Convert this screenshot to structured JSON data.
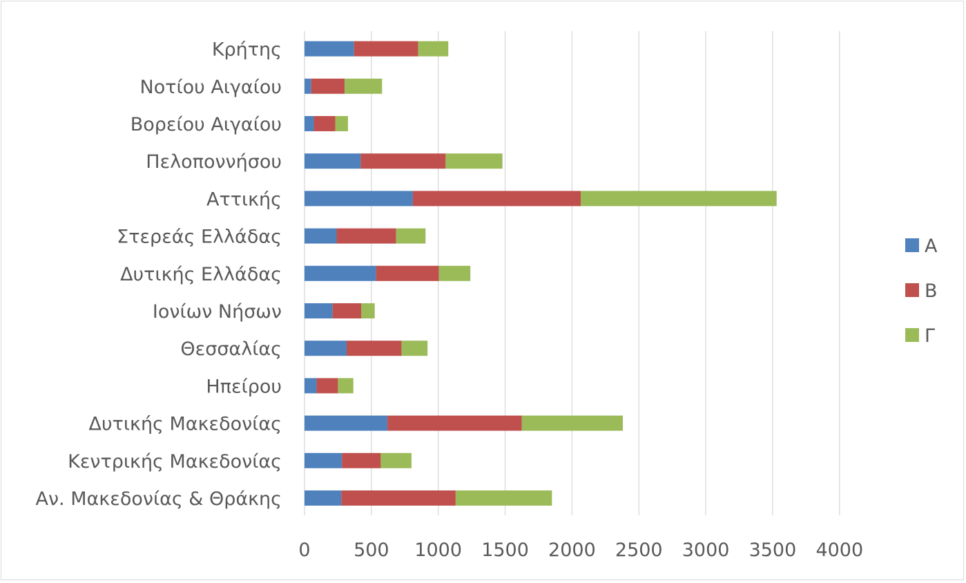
{
  "chart_data": {
    "type": "bar",
    "orientation": "horizontal",
    "stacked": true,
    "categories": [
      "Αν. Μακεδονίας & Θράκης",
      "Κεντρικής Μακεδονίας",
      "Δυτικής Μακεδονίας",
      "Ηπείρου",
      "Θεσσαλίας",
      "Ιονίων Νήσων",
      "Δυτικής Ελλάδας",
      "Στερεάς Ελλάδας",
      "Αττικής",
      "Πελοποννήσου",
      "Βορείου Αιγαίου",
      "Νοτίου Αιγαίου",
      "Κρήτης"
    ],
    "series": [
      {
        "name": "Α",
        "color": "#4f81bd",
        "values": [
          275,
          280,
          620,
          90,
          315,
          210,
          535,
          240,
          810,
          420,
          70,
          50,
          370
        ]
      },
      {
        "name": "Β",
        "color": "#c0504d",
        "values": [
          855,
          290,
          1005,
          160,
          410,
          215,
          470,
          445,
          1255,
          635,
          160,
          250,
          480
        ]
      },
      {
        "name": "Γ",
        "color": "#9bbb59",
        "values": [
          720,
          230,
          755,
          115,
          195,
          100,
          235,
          220,
          1465,
          425,
          95,
          280,
          225
        ]
      }
    ],
    "x_ticks": [
      "0",
      "500",
      "1000",
      "1500",
      "2000",
      "2500",
      "3000",
      "3500",
      "4000"
    ],
    "xlim": [
      0,
      4000
    ],
    "grid": true,
    "legend_position": "right",
    "title": "",
    "xlabel": "",
    "ylabel": ""
  }
}
